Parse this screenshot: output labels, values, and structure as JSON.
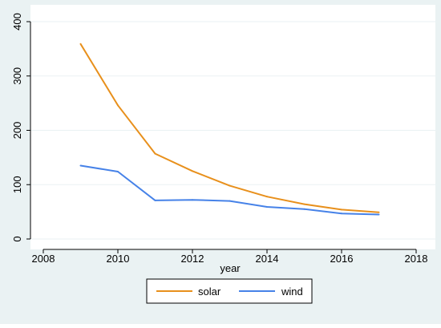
{
  "chart_data": {
    "type": "line",
    "title": "",
    "xlabel": "year",
    "ylabel": "",
    "xlim": [
      2008,
      2018
    ],
    "ylim": [
      0,
      400
    ],
    "x_ticks": [
      2008,
      2010,
      2012,
      2014,
      2016,
      2018
    ],
    "y_ticks": [
      0,
      100,
      200,
      300,
      400
    ],
    "grid": true,
    "legend_position": "bottom",
    "series": [
      {
        "name": "solar",
        "color": "#E8901C",
        "x": [
          2009,
          2010,
          2011,
          2012,
          2013,
          2014,
          2015,
          2016,
          2017
        ],
        "values": [
          359,
          246,
          157,
          125,
          98,
          78,
          64,
          54,
          49
        ]
      },
      {
        "name": "wind",
        "color": "#4682E8",
        "x": [
          2009,
          2010,
          2011,
          2012,
          2013,
          2014,
          2015,
          2016,
          2017
        ],
        "values": [
          135,
          124,
          71,
          72,
          70,
          59,
          55,
          47,
          45
        ]
      }
    ]
  },
  "colors": {
    "outer_background": "#EAF2F3",
    "plot_background": "#FFFFFF",
    "grid": "#EAF2F3"
  }
}
